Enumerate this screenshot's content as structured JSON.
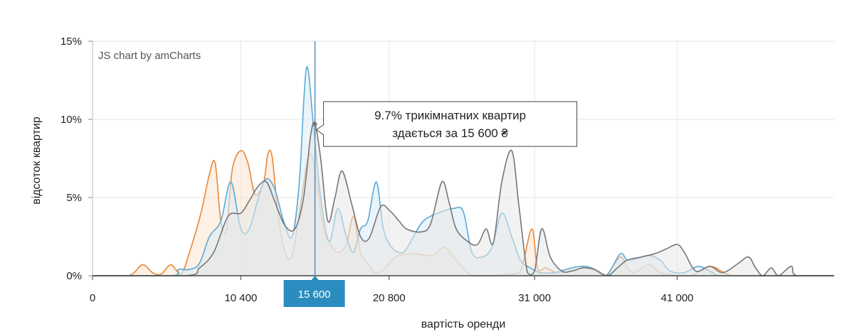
{
  "chart_data": {
    "type": "area",
    "xlabel": "вартість оренди",
    "ylabel": "відсоток квартир",
    "xlim": [
      0,
      52000
    ],
    "ylim": [
      0,
      15
    ],
    "x_ticks": [
      {
        "value": 0,
        "label": "0"
      },
      {
        "value": 10400,
        "label": "10 400"
      },
      {
        "value": 20800,
        "label": "20 800"
      },
      {
        "value": 31000,
        "label": "31 000"
      },
      {
        "value": 41000,
        "label": "41 000"
      }
    ],
    "y_ticks": [
      {
        "value": 0,
        "label": "0%"
      },
      {
        "value": 5,
        "label": "5%"
      },
      {
        "value": 10,
        "label": "10%"
      },
      {
        "value": 15,
        "label": "15%"
      }
    ],
    "grid": true,
    "credit": "JS chart by amCharts",
    "cursor": {
      "x": 15600,
      "label": "15 600",
      "tooltip_line1": "9.7% трикімнатних квартир",
      "tooltip_line2": "здається за 15 600 ₴"
    },
    "series": [
      {
        "color": "#e8883a",
        "fill": "#fbe3cf",
        "points": [
          [
            0,
            0
          ],
          [
            2500,
            0
          ],
          [
            3500,
            0.7
          ],
          [
            4200,
            0.2
          ],
          [
            4800,
            0.1
          ],
          [
            5500,
            0.7
          ],
          [
            6200,
            0.1
          ],
          [
            6800,
            1.5
          ],
          [
            7600,
            4.0
          ],
          [
            8200,
            6.5
          ],
          [
            8600,
            7.2
          ],
          [
            9000,
            3.5
          ],
          [
            9400,
            3.0
          ],
          [
            9800,
            6.8
          ],
          [
            10400,
            8.0
          ],
          [
            10900,
            7.2
          ],
          [
            11400,
            5.2
          ],
          [
            12000,
            6.0
          ],
          [
            12300,
            7.8
          ],
          [
            12600,
            7.6
          ],
          [
            13000,
            4.0
          ],
          [
            13500,
            1.5
          ],
          [
            14000,
            1.3
          ],
          [
            14500,
            4.0
          ],
          [
            15000,
            7.0
          ],
          [
            15300,
            7.8
          ],
          [
            15700,
            6.2
          ],
          [
            16200,
            3.0
          ],
          [
            16700,
            2.0
          ],
          [
            17200,
            1.5
          ],
          [
            17800,
            2.0
          ],
          [
            18300,
            3.8
          ],
          [
            18800,
            1.5
          ],
          [
            19300,
            0.8
          ],
          [
            19800,
            0.2
          ],
          [
            20300,
            0.3
          ],
          [
            21000,
            1.0
          ],
          [
            21500,
            1.3
          ],
          [
            22500,
            1.4
          ],
          [
            23800,
            1.3
          ],
          [
            24700,
            1.8
          ],
          [
            25500,
            1.0
          ],
          [
            26300,
            0.2
          ],
          [
            27000,
            0
          ],
          [
            28000,
            0
          ],
          [
            29000,
            0.1
          ],
          [
            30000,
            0.3
          ],
          [
            30800,
            3.0
          ],
          [
            31200,
            0.5
          ],
          [
            31800,
            0.5
          ],
          [
            32500,
            0.2
          ],
          [
            33000,
            0.2
          ],
          [
            34000,
            0.4
          ],
          [
            34600,
            0.6
          ],
          [
            35300,
            0.3
          ],
          [
            36000,
            0
          ],
          [
            37000,
            1.2
          ],
          [
            37500,
            0.5
          ],
          [
            38000,
            0.2
          ],
          [
            39000,
            0.7
          ],
          [
            39800,
            0.2
          ],
          [
            41000,
            0
          ],
          [
            42000,
            0
          ],
          [
            43300,
            0.6
          ],
          [
            44500,
            0.1
          ],
          [
            45500,
            0
          ],
          [
            52000,
            0
          ]
        ]
      },
      {
        "color": "#5aaad6",
        "fill": "#d9ebf5",
        "points": [
          [
            0,
            0
          ],
          [
            5500,
            0
          ],
          [
            6000,
            0.4
          ],
          [
            6800,
            0.4
          ],
          [
            7500,
            0.8
          ],
          [
            8200,
            2.5
          ],
          [
            9000,
            3.5
          ],
          [
            9700,
            6.0
          ],
          [
            10400,
            3.0
          ],
          [
            11000,
            3.0
          ],
          [
            11700,
            5.2
          ],
          [
            12200,
            6.2
          ],
          [
            12800,
            5.5
          ],
          [
            13400,
            3.5
          ],
          [
            14000,
            2.5
          ],
          [
            14500,
            6.0
          ],
          [
            15000,
            13.3
          ],
          [
            15500,
            9.5
          ],
          [
            16000,
            5.0
          ],
          [
            16600,
            2.2
          ],
          [
            17200,
            4.3
          ],
          [
            17800,
            2.5
          ],
          [
            18300,
            1.5
          ],
          [
            18800,
            3.0
          ],
          [
            19300,
            3.5
          ],
          [
            19900,
            6.0
          ],
          [
            20400,
            3.0
          ],
          [
            21000,
            1.8
          ],
          [
            21800,
            1.5
          ],
          [
            22500,
            2.5
          ],
          [
            23200,
            3.5
          ],
          [
            24200,
            4.0
          ],
          [
            25300,
            4.3
          ],
          [
            26000,
            4.1
          ],
          [
            26600,
            1.5
          ],
          [
            27300,
            1.2
          ],
          [
            28000,
            1.8
          ],
          [
            28700,
            4.0
          ],
          [
            29400,
            2.5
          ],
          [
            30000,
            1.0
          ],
          [
            30700,
            0.5
          ],
          [
            31400,
            0.2
          ],
          [
            32400,
            0.2
          ],
          [
            33200,
            0.4
          ],
          [
            34200,
            0.6
          ],
          [
            35000,
            0.5
          ],
          [
            36000,
            0
          ],
          [
            37000,
            1.4
          ],
          [
            37500,
            1.0
          ],
          [
            38200,
            1.1
          ],
          [
            39000,
            1.3
          ],
          [
            39800,
            1.0
          ],
          [
            40500,
            0.3
          ],
          [
            41500,
            0.2
          ],
          [
            42500,
            0.6
          ],
          [
            43500,
            0.2
          ],
          [
            44500,
            0
          ],
          [
            52000,
            0
          ]
        ]
      },
      {
        "color": "#777777",
        "fill": "#e7e7e7",
        "points": [
          [
            0,
            0
          ],
          [
            6500,
            0
          ],
          [
            7500,
            0.5
          ],
          [
            8500,
            1.5
          ],
          [
            9500,
            3.8
          ],
          [
            10400,
            4.0
          ],
          [
            11000,
            4.8
          ],
          [
            11600,
            5.7
          ],
          [
            12200,
            6.0
          ],
          [
            12800,
            4.7
          ],
          [
            13500,
            3.2
          ],
          [
            14200,
            3.0
          ],
          [
            14800,
            5.0
          ],
          [
            15300,
            9.0
          ],
          [
            15600,
            9.7
          ],
          [
            16000,
            7.5
          ],
          [
            16500,
            3.5
          ],
          [
            17000,
            5.0
          ],
          [
            17500,
            6.7
          ],
          [
            18200,
            4.5
          ],
          [
            18800,
            2.5
          ],
          [
            19400,
            2.4
          ],
          [
            20200,
            4.4
          ],
          [
            20800,
            4.2
          ],
          [
            21500,
            3.5
          ],
          [
            22000,
            3.0
          ],
          [
            23000,
            2.8
          ],
          [
            23700,
            3.3
          ],
          [
            24500,
            6.0
          ],
          [
            25000,
            4.7
          ],
          [
            25500,
            3.0
          ],
          [
            26300,
            2.2
          ],
          [
            27000,
            2.0
          ],
          [
            27600,
            3.0
          ],
          [
            28100,
            2.1
          ],
          [
            28700,
            6.0
          ],
          [
            29400,
            8.0
          ],
          [
            29900,
            4.5
          ],
          [
            30500,
            0.2
          ],
          [
            31000,
            0.3
          ],
          [
            31500,
            3.0
          ],
          [
            32100,
            1.2
          ],
          [
            32900,
            0.3
          ],
          [
            33600,
            0.3
          ],
          [
            34400,
            0.5
          ],
          [
            35200,
            0.4
          ],
          [
            36100,
            0
          ],
          [
            36800,
            0.5
          ],
          [
            37500,
            1.0
          ],
          [
            38500,
            1.2
          ],
          [
            39400,
            1.4
          ],
          [
            40200,
            1.7
          ],
          [
            41000,
            2.0
          ],
          [
            41500,
            1.5
          ],
          [
            42300,
            0.3
          ],
          [
            43300,
            0.6
          ],
          [
            44200,
            0.2
          ],
          [
            45300,
            0.8
          ],
          [
            46000,
            1.2
          ],
          [
            46500,
            0.5
          ],
          [
            47000,
            0
          ],
          [
            47600,
            0.5
          ],
          [
            48100,
            0
          ],
          [
            49000,
            0.6
          ],
          [
            49400,
            0
          ],
          [
            52000,
            0
          ]
        ]
      }
    ]
  }
}
